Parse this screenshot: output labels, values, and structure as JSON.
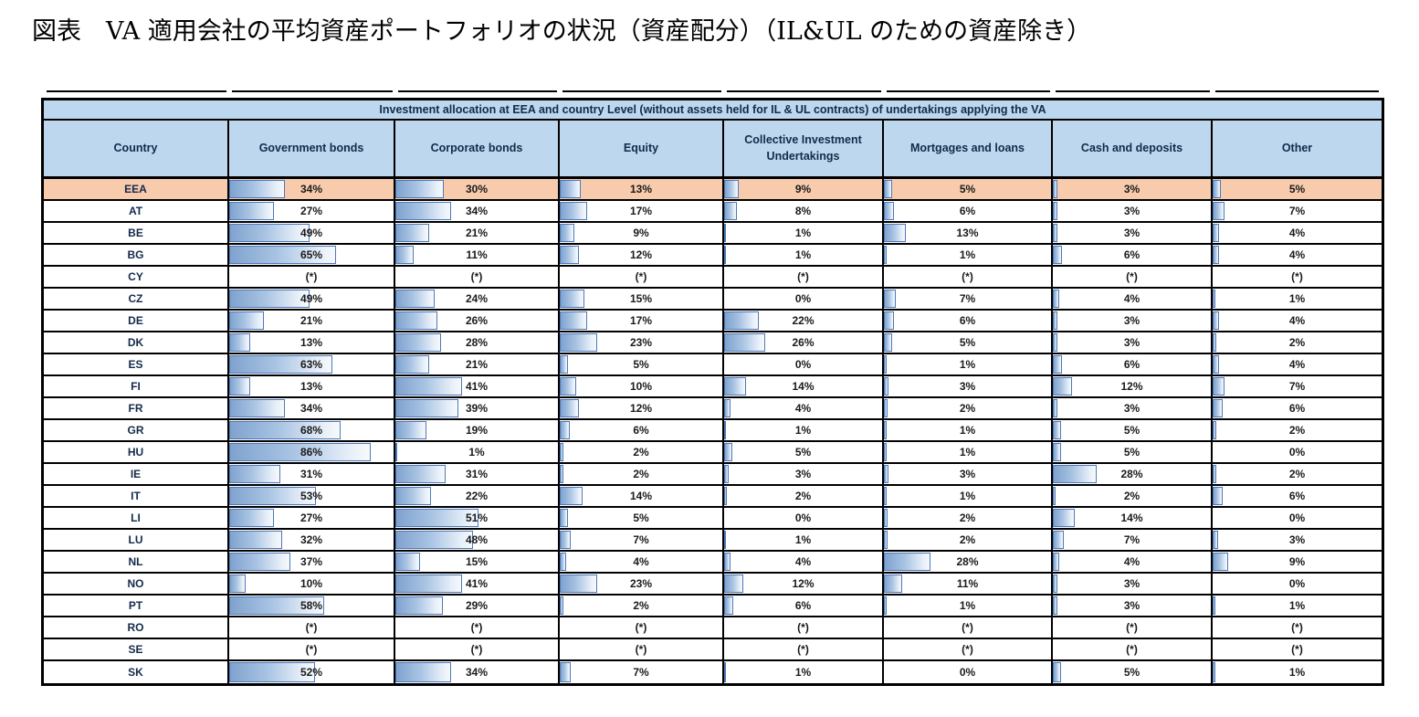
{
  "figure_caption": "図表　VA 適用会社の平均資産ポートフォリオの状況（資産配分）（IL&UL のための資産除き）",
  "chart_data": {
    "type": "table",
    "title": "Investment allocation at EEA and country Level (without assets held for IL & UL contracts) of undertakings applying the VA",
    "country_column_label": "Country",
    "columns": [
      "Government bonds",
      "Corporate bonds",
      "Equity",
      "Collective Investment Undertakings",
      "Mortgages and loans",
      "Cash and deposits",
      "Other"
    ],
    "unit": "%",
    "masked_marker": "(*)",
    "highlight_row": "EEA",
    "bar_scale": {
      "min": 0,
      "max": 100
    },
    "rows": [
      {
        "country": "EEA",
        "values": [
          34,
          30,
          13,
          9,
          5,
          3,
          5
        ]
      },
      {
        "country": "AT",
        "values": [
          27,
          34,
          17,
          8,
          6,
          3,
          7
        ]
      },
      {
        "country": "BE",
        "values": [
          49,
          21,
          9,
          1,
          13,
          3,
          4
        ]
      },
      {
        "country": "BG",
        "values": [
          65,
          11,
          12,
          1,
          1,
          6,
          4
        ]
      },
      {
        "country": "CY",
        "values": [
          "(*)",
          "(*)",
          "(*)",
          "(*)",
          "(*)",
          "(*)",
          "(*)"
        ]
      },
      {
        "country": "CZ",
        "values": [
          49,
          24,
          15,
          0,
          7,
          4,
          1
        ]
      },
      {
        "country": "DE",
        "values": [
          21,
          26,
          17,
          22,
          6,
          3,
          4
        ]
      },
      {
        "country": "DK",
        "values": [
          13,
          28,
          23,
          26,
          5,
          3,
          2
        ]
      },
      {
        "country": "ES",
        "values": [
          63,
          21,
          5,
          0,
          1,
          6,
          4
        ]
      },
      {
        "country": "FI",
        "values": [
          13,
          41,
          10,
          14,
          3,
          12,
          7
        ]
      },
      {
        "country": "FR",
        "values": [
          34,
          39,
          12,
          4,
          2,
          3,
          6
        ]
      },
      {
        "country": "GR",
        "values": [
          68,
          19,
          6,
          1,
          1,
          5,
          2
        ]
      },
      {
        "country": "HU",
        "values": [
          86,
          1,
          2,
          5,
          1,
          5,
          0
        ]
      },
      {
        "country": "IE",
        "values": [
          31,
          31,
          2,
          3,
          3,
          28,
          2
        ]
      },
      {
        "country": "IT",
        "values": [
          53,
          22,
          14,
          2,
          1,
          2,
          6
        ]
      },
      {
        "country": "LI",
        "values": [
          27,
          51,
          5,
          0,
          2,
          14,
          0
        ]
      },
      {
        "country": "LU",
        "values": [
          32,
          48,
          7,
          1,
          2,
          7,
          3
        ]
      },
      {
        "country": "NL",
        "values": [
          37,
          15,
          4,
          4,
          28,
          4,
          9
        ]
      },
      {
        "country": "NO",
        "values": [
          10,
          41,
          23,
          12,
          11,
          3,
          0
        ]
      },
      {
        "country": "PT",
        "values": [
          58,
          29,
          2,
          6,
          1,
          3,
          1
        ]
      },
      {
        "country": "RO",
        "values": [
          "(*)",
          "(*)",
          "(*)",
          "(*)",
          "(*)",
          "(*)",
          "(*)"
        ]
      },
      {
        "country": "SE",
        "values": [
          "(*)",
          "(*)",
          "(*)",
          "(*)",
          "(*)",
          "(*)",
          "(*)"
        ]
      },
      {
        "country": "SK",
        "values": [
          52,
          34,
          7,
          1,
          0,
          5,
          1
        ]
      }
    ]
  },
  "colors": {
    "header_bg": "#BDD7EE",
    "highlight_row_bg": "#F8CBAD",
    "bar_border": "#4E79B8",
    "bar_fill": "#7FA2CE",
    "grid_border": "#000000",
    "header_text": "#142A4A"
  }
}
